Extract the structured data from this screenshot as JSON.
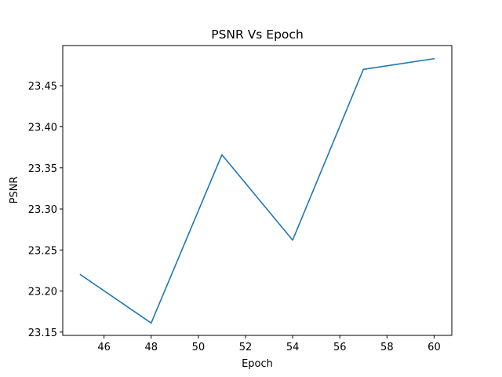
{
  "chart_data": {
    "type": "line",
    "title": "PSNR Vs Epoch",
    "xlabel": "Epoch",
    "ylabel": "PSNR",
    "x_ticks": [
      46,
      48,
      50,
      52,
      54,
      56,
      58,
      60
    ],
    "y_ticks": [
      "23.15",
      "23.20",
      "23.25",
      "23.30",
      "23.35",
      "23.40",
      "23.45"
    ],
    "xlim": [
      44.25,
      60.75
    ],
    "ylim": [
      23.146,
      23.499
    ],
    "grid": false,
    "series": [
      {
        "color": "#1f77b4",
        "x": [
          45,
          48,
          51,
          54,
          57,
          60
        ],
        "y": [
          23.22,
          23.161,
          23.366,
          23.262,
          23.47,
          23.483
        ]
      }
    ]
  }
}
